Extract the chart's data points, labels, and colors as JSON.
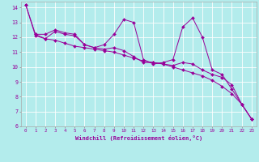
{
  "title": "",
  "xlabel": "Windchill (Refroidissement éolien,°C)",
  "ylabel": "",
  "bg_color": "#b3ecec",
  "grid_color": "#ffffff",
  "line_color": "#990099",
  "xlim": [
    -0.5,
    23.5
  ],
  "ylim": [
    6,
    14.4
  ],
  "yticks": [
    6,
    7,
    8,
    9,
    10,
    11,
    12,
    13,
    14
  ],
  "xticks": [
    0,
    1,
    2,
    3,
    4,
    5,
    6,
    7,
    8,
    9,
    10,
    11,
    12,
    13,
    14,
    15,
    16,
    17,
    18,
    19,
    20,
    21,
    22,
    23
  ],
  "series": [
    {
      "x": [
        0,
        1,
        2,
        3,
        4,
        5,
        6,
        7,
        8,
        9,
        10,
        11,
        12,
        13,
        14,
        15,
        16,
        17,
        18,
        19,
        20,
        21,
        22,
        23
      ],
      "y": [
        14.2,
        12.2,
        12.2,
        12.5,
        12.3,
        12.2,
        11.5,
        11.3,
        11.5,
        12.2,
        13.2,
        13.0,
        10.5,
        10.2,
        10.3,
        10.5,
        12.7,
        13.3,
        12.0,
        9.8,
        9.5,
        8.5,
        7.5,
        6.5
      ]
    },
    {
      "x": [
        0,
        1,
        2,
        3,
        4,
        5,
        6,
        7,
        8,
        9,
        10,
        11,
        12,
        13,
        14,
        15,
        16,
        17,
        18,
        19,
        20,
        21,
        22,
        23
      ],
      "y": [
        14.2,
        12.1,
        11.9,
        11.8,
        11.6,
        11.4,
        11.3,
        11.2,
        11.1,
        11.0,
        10.8,
        10.6,
        10.4,
        10.3,
        10.2,
        10.0,
        9.8,
        9.6,
        9.4,
        9.1,
        8.7,
        8.2,
        7.5,
        6.5
      ]
    },
    {
      "x": [
        1,
        2,
        3,
        4,
        5,
        6,
        7,
        8,
        9,
        10,
        11,
        12,
        13,
        14,
        15,
        16,
        17,
        18,
        19,
        20,
        21,
        22,
        23
      ],
      "y": [
        12.2,
        11.9,
        12.4,
        12.2,
        12.1,
        11.5,
        11.3,
        11.2,
        11.3,
        11.1,
        10.7,
        10.3,
        10.3,
        10.2,
        10.1,
        10.3,
        10.2,
        9.8,
        9.5,
        9.3,
        8.8,
        7.5,
        6.5
      ]
    }
  ]
}
